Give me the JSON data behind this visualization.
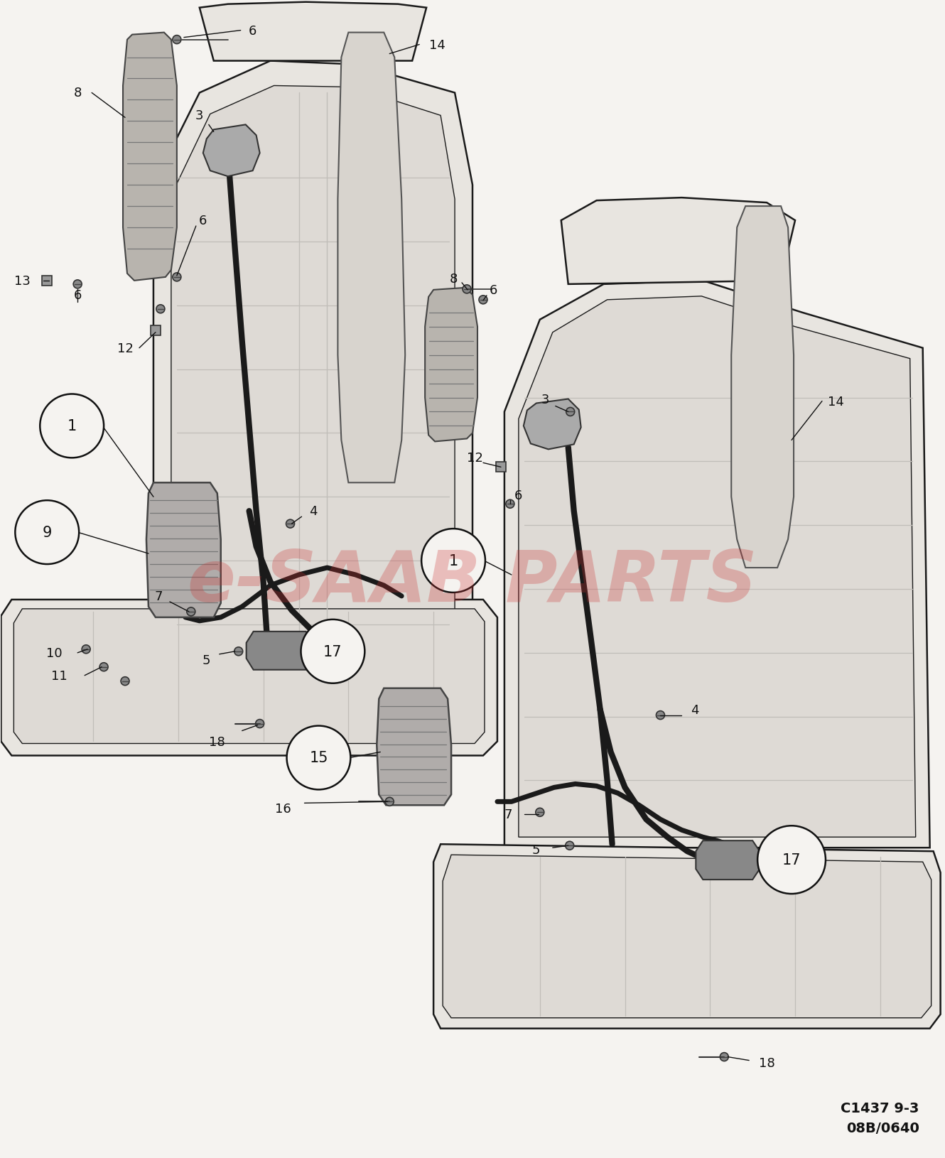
{
  "background_color": "#f5f3f0",
  "seat_fill": "#e8e5e0",
  "seat_edge": "#1a1a1a",
  "belt_color": "#1a1a1a",
  "line_color": "#111111",
  "watermark_text": "e-SAAB PARTS",
  "watermark_color": "#cc3333",
  "watermark_alpha": 0.28,
  "bottom_right_text1": "C1437 9-3",
  "bottom_right_text2": "08B/0640",
  "label_fontsize": 13,
  "circle_fontsize": 15
}
